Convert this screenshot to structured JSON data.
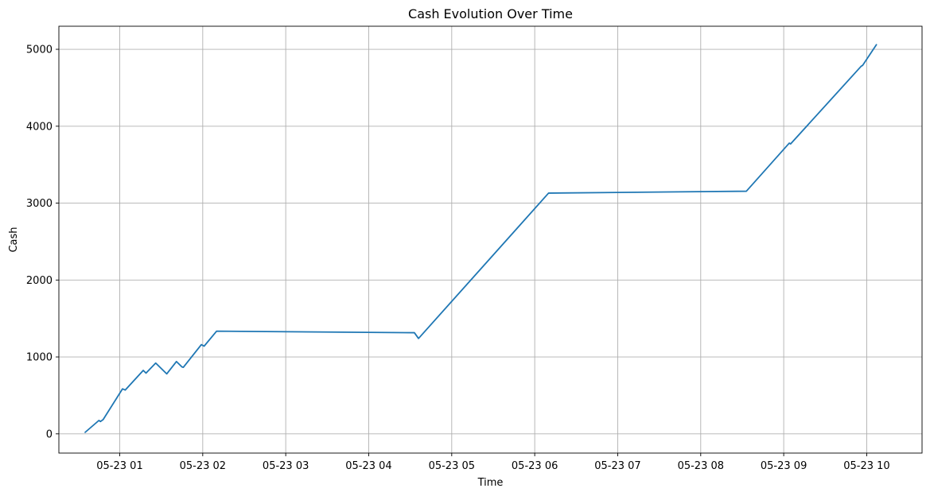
{
  "chart_data": {
    "type": "line",
    "title": "Cash Evolution Over Time",
    "xlabel": "Time",
    "ylabel": "Cash",
    "grid": true,
    "x_ticks": [
      "05-23 01",
      "05-23 02",
      "05-23 03",
      "05-23 04",
      "05-23 05",
      "05-23 06",
      "05-23 07",
      "05-23 08",
      "05-23 09",
      "05-23 10"
    ],
    "x_tick_hours": [
      1,
      2,
      3,
      4,
      5,
      6,
      7,
      8,
      9,
      10
    ],
    "y_ticks": [
      0,
      1000,
      2000,
      3000,
      4000,
      5000
    ],
    "y_tick_labels": [
      "0",
      "1000",
      "2000",
      "3000",
      "4000",
      "5000"
    ],
    "xlim": [
      "2024-05-23T00:16",
      "2024-05-23T10:40"
    ],
    "ylim": [
      -250,
      5300
    ],
    "series": [
      {
        "color": "#1f77b4",
        "x": [
          "2024-05-23T00:35",
          "2024-05-23T00:45",
          "2024-05-23T00:46",
          "2024-05-23T00:48",
          "2024-05-23T01:02",
          "2024-05-23T01:04",
          "2024-05-23T01:05",
          "2024-05-23T01:17",
          "2024-05-23T01:19",
          "2024-05-23T01:26",
          "2024-05-23T01:34",
          "2024-05-23T01:41",
          "2024-05-23T01:45",
          "2024-05-23T01:46",
          "2024-05-23T01:59",
          "2024-05-23T02:01",
          "2024-05-23T02:10",
          "2024-05-23T04:33",
          "2024-05-23T04:36",
          "2024-05-23T06:10",
          "2024-05-23T08:33",
          "2024-05-23T09:04",
          "2024-05-23T09:05",
          "2024-05-23T09:56",
          "2024-05-23T09:57",
          "2024-05-23T10:07"
        ],
        "y": [
          20,
          175,
          160,
          185,
          585,
          570,
          590,
          825,
          790,
          920,
          780,
          940,
          870,
          865,
          1160,
          1140,
          1335,
          1315,
          1240,
          3130,
          3155,
          3780,
          3770,
          4780,
          4790,
          5060
        ]
      }
    ]
  }
}
